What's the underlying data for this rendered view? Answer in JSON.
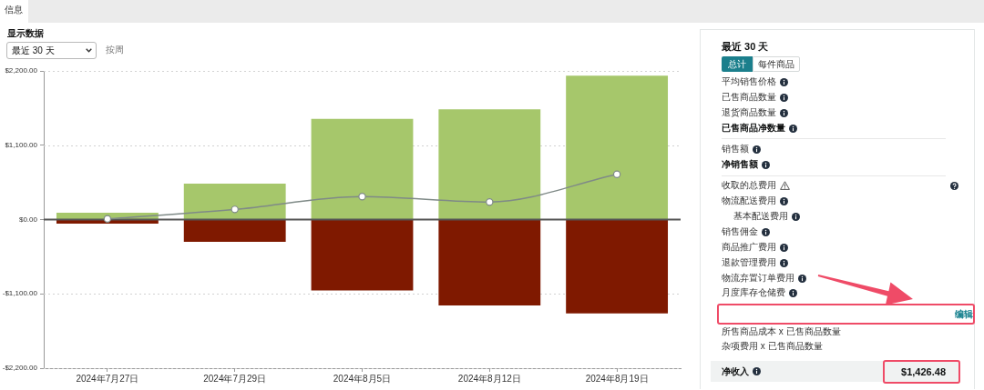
{
  "chart_data": [
    {
      "type": "bar",
      "title": "显示数据",
      "annotations": [
        "信息",
        "最近 30 天",
        "按周"
      ],
      "categories": [
        "2024年7月27日",
        "2024年7月29日",
        "2024年8月5日",
        "2024年8月12日",
        "2024年8月19日"
      ],
      "series": [
        {
          "type": "bar",
          "color": "#a6c76b",
          "values": [
            100,
            530,
            1490,
            1630,
            2130
          ]
        },
        {
          "type": "bar",
          "color": "#7f1900",
          "values": [
            -60,
            -330,
            -1050,
            -1270,
            -1390
          ]
        },
        {
          "type": "line",
          "color": "#7f8a87",
          "values": [
            10,
            150,
            340,
            260,
            670
          ]
        }
      ],
      "stacked": true,
      "marker": "circle",
      "ylim": [
        -2200,
        2200
      ],
      "yticks": [
        {
          "value": -2200,
          "label": "-$2,200.00"
        },
        {
          "value": -1100,
          "label": "-$1,100.00"
        },
        {
          "value": 0,
          "label": "$0.00"
        },
        {
          "value": 1100,
          "label": "$1,100.00"
        },
        {
          "value": 2200,
          "label": "$2,200.00"
        }
      ],
      "grid": "y"
    },
    {
      "type": "other",
      "title": "最近 30 天",
      "annotations": [
        "总计",
        "每件商品",
        "平均销售价格",
        "已售商品数量",
        "退货商品数量",
        "已售商品净数量",
        "销售额",
        "净销售额",
        "收取的总费用",
        "物流配送费用",
        "基本配送费用",
        "销售佣金",
        "商品推广费用",
        "退款管理费用",
        "物流弃置订单费用",
        "月度库存仓储费",
        "编辑",
        "所售商品成本 x 已售商品数量",
        "杂项费用 x 已售商品数量",
        "净收入",
        "$1,426.48"
      ]
    }
  ]
}
